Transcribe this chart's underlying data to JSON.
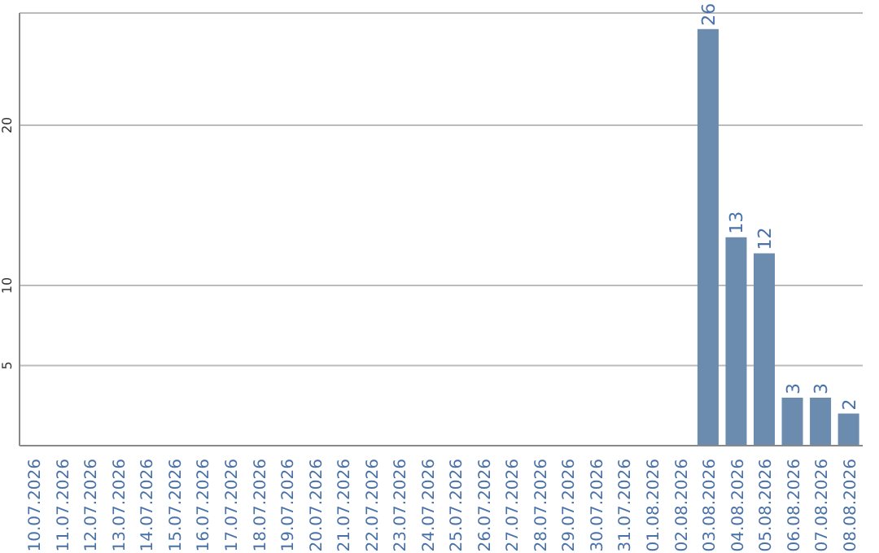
{
  "chart_data": {
    "type": "bar",
    "categories": [
      "10.07.2026",
      "11.07.2026",
      "12.07.2026",
      "13.07.2026",
      "14.07.2026",
      "15.07.2026",
      "16.07.2026",
      "17.07.2026",
      "18.07.2026",
      "19.07.2026",
      "20.07.2026",
      "21.07.2026",
      "22.07.2026",
      "23.07.2026",
      "24.07.2026",
      "25.07.2026",
      "26.07.2026",
      "27.07.2026",
      "28.07.2026",
      "29.07.2026",
      "30.07.2026",
      "31.07.2026",
      "01.08.2026",
      "02.08.2026",
      "03.08.2026",
      "04.08.2026",
      "05.08.2026",
      "06.08.2026",
      "07.08.2026",
      "08.08.2026"
    ],
    "values": [
      0,
      0,
      0,
      0,
      0,
      0,
      0,
      0,
      0,
      0,
      0,
      0,
      0,
      0,
      0,
      0,
      0,
      0,
      0,
      0,
      0,
      0,
      0,
      0,
      26,
      13,
      12,
      3,
      3,
      2
    ],
    "value_labels": [
      null,
      null,
      null,
      null,
      null,
      null,
      null,
      null,
      null,
      null,
      null,
      null,
      null,
      null,
      null,
      null,
      null,
      null,
      null,
      null,
      null,
      null,
      null,
      null,
      "26",
      "13",
      "12",
      "3",
      "3",
      "2"
    ],
    "color": "#6b8cae",
    "ylim": [
      0,
      27
    ],
    "yticks": [
      5,
      10,
      20
    ],
    "grid": "y"
  }
}
